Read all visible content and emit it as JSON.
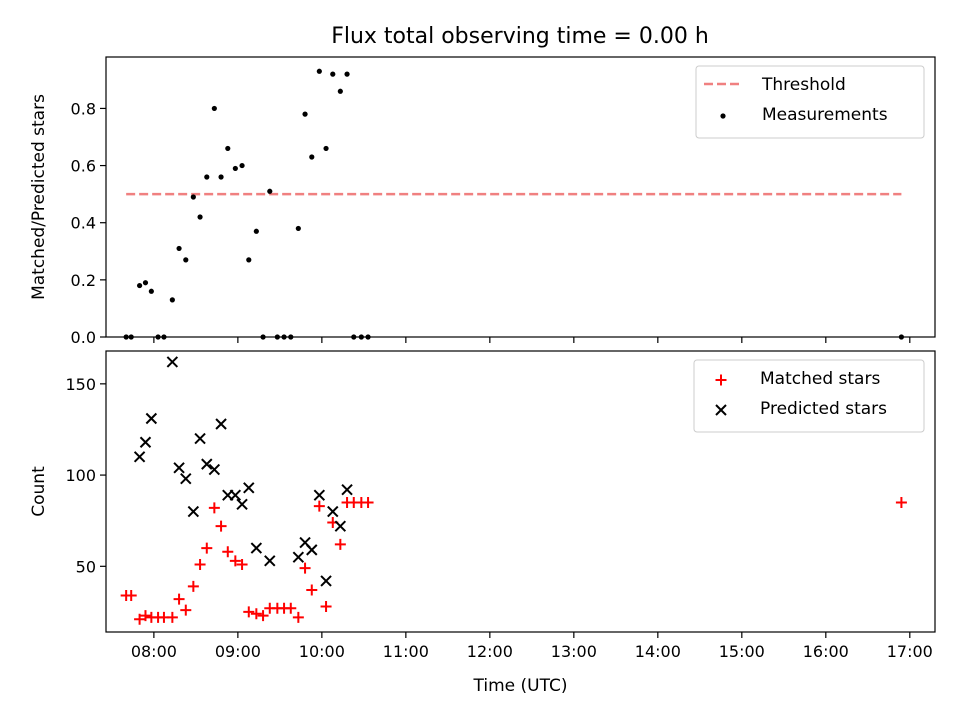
{
  "title": "Flux total observing time = 0.00 h",
  "chart_data": [
    {
      "type": "scatter",
      "panel": "top",
      "ylabel": "Matched/Predicted stars",
      "xlabel": "",
      "x_unit": "hours (UTC)",
      "xlim": [
        7.43,
        17.3
      ],
      "ylim": [
        0,
        0.98
      ],
      "yticks": [
        0.0,
        0.2,
        0.4,
        0.6,
        0.8
      ],
      "ytick_labels": [
        "0.0",
        "0.2",
        "0.4",
        "0.6",
        "0.8"
      ],
      "legend_position": "top-right",
      "threshold": {
        "name": "Threshold",
        "value": 0.5,
        "x_range": [
          7.67,
          16.9
        ],
        "color": "#f08080"
      },
      "series": [
        {
          "name": "Measurements",
          "color": "#000000",
          "marker": "dot",
          "x": [
            7.67,
            7.73,
            7.83,
            7.9,
            7.97,
            8.05,
            8.12,
            8.22,
            8.3,
            8.38,
            8.47,
            8.55,
            8.63,
            8.72,
            8.8,
            8.88,
            8.97,
            9.05,
            9.13,
            9.22,
            9.3,
            9.38,
            9.47,
            9.55,
            9.63,
            9.72,
            9.8,
            9.88,
            9.97,
            10.05,
            10.13,
            10.22,
            10.3,
            10.38,
            10.47,
            10.55,
            16.9
          ],
          "y": [
            0.0,
            0.0,
            0.18,
            0.19,
            0.16,
            0.0,
            0.0,
            0.13,
            0.31,
            0.27,
            0.49,
            0.42,
            0.56,
            0.8,
            0.56,
            0.66,
            0.59,
            0.6,
            0.27,
            0.37,
            0.0,
            0.51,
            0.0,
            0.0,
            0.0,
            0.38,
            0.78,
            0.63,
            0.93,
            0.66,
            0.92,
            0.86,
            0.92,
            0.0,
            0.0,
            0.0,
            0.0
          ]
        }
      ]
    },
    {
      "type": "scatter",
      "panel": "bottom",
      "ylabel": "Count",
      "xlabel": "Time (UTC)",
      "x_unit": "hours (UTC)",
      "xlim": [
        7.43,
        17.3
      ],
      "ylim": [
        14,
        168
      ],
      "yticks": [
        50,
        100,
        150
      ],
      "ytick_labels": [
        "50",
        "100",
        "150"
      ],
      "xticks": [
        8,
        9,
        10,
        11,
        12,
        13,
        14,
        15,
        16,
        17
      ],
      "xtick_labels": [
        "08:00",
        "09:00",
        "10:00",
        "11:00",
        "12:00",
        "13:00",
        "14:00",
        "15:00",
        "16:00",
        "17:00"
      ],
      "legend_position": "top-right",
      "series": [
        {
          "name": "Matched stars",
          "color": "#ff0000",
          "marker": "plus",
          "x": [
            7.67,
            7.73,
            7.83,
            7.9,
            7.97,
            8.05,
            8.12,
            8.22,
            8.3,
            8.38,
            8.47,
            8.55,
            8.63,
            8.72,
            8.8,
            8.88,
            8.97,
            9.05,
            9.13,
            9.22,
            9.3,
            9.38,
            9.47,
            9.55,
            9.63,
            9.72,
            9.8,
            9.88,
            9.97,
            10.05,
            10.13,
            10.22,
            10.3,
            10.38,
            10.47,
            10.55,
            16.9
          ],
          "y": [
            34,
            34,
            21,
            23,
            22,
            22,
            22,
            22,
            32,
            26,
            39,
            51,
            60,
            82,
            72,
            58,
            53,
            51,
            25,
            24,
            23,
            27,
            27,
            27,
            27,
            22,
            49,
            37,
            83,
            28,
            74,
            62,
            85,
            85,
            85,
            85,
            85
          ]
        },
        {
          "name": "Predicted stars",
          "color": "#000000",
          "marker": "x",
          "x": [
            7.83,
            7.9,
            7.97,
            8.22,
            8.3,
            8.38,
            8.47,
            8.55,
            8.63,
            8.72,
            8.8,
            8.88,
            8.97,
            9.05,
            9.13,
            9.22,
            9.38,
            9.72,
            9.8,
            9.88,
            9.97,
            10.05,
            10.13,
            10.22,
            10.3
          ],
          "y": [
            110,
            118,
            131,
            162,
            104,
            98,
            80,
            120,
            106,
            103,
            128,
            89,
            89,
            84,
            93,
            60,
            53,
            55,
            63,
            59,
            89,
            42,
            80,
            72,
            92
          ]
        }
      ]
    }
  ]
}
